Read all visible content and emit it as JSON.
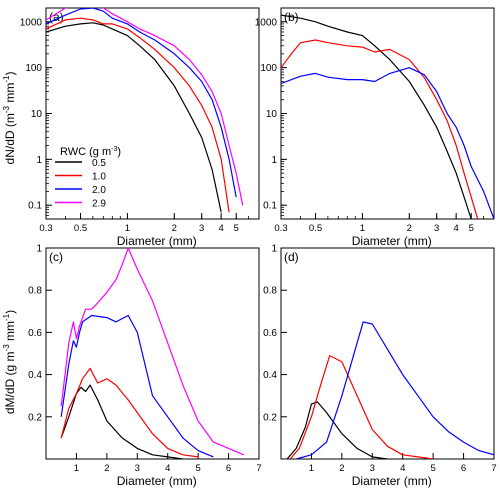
{
  "figure": {
    "legend_title_main": "RWC (g m",
    "legend_title_sup": "-3",
    "legend_title_end": ")",
    "ylabel_top_main": "dN/dD  (m",
    "ylabel_top_sup1": "-3",
    "ylabel_top_mid": " mm",
    "ylabel_top_sup2": "-1",
    "ylabel_top_end": ")",
    "ylabel_bottom_main": "dM/dD  (g m",
    "ylabel_bottom_sup1": "-3",
    "ylabel_bottom_mid": " mm",
    "ylabel_bottom_sup2": "-1",
    "ylabel_bottom_end": ")"
  },
  "chart_data": [
    {
      "panel_label": "(a)",
      "type": "line",
      "xscale": "log",
      "yscale": "log",
      "xlim": [
        0.3,
        7
      ],
      "ylim": [
        0.05,
        2000
      ],
      "xticks": [
        "0.3",
        "0.5",
        "1",
        "2",
        "3",
        "4",
        "5"
      ],
      "xtick_values": [
        0.3,
        0.5,
        1,
        2,
        3,
        4,
        5
      ],
      "yticks": [
        "0.1",
        "1",
        "10",
        "100",
        "1000"
      ],
      "ytick_values": [
        0.1,
        1,
        10,
        100,
        1000
      ],
      "xlabel": "Diameter (mm)",
      "legend": {
        "placement": "lower-left",
        "entries": [
          "0.5",
          "1.0",
          "2.0",
          "2.9"
        ]
      },
      "series": [
        {
          "name": "0.5",
          "color": "#000000",
          "x": [
            0.3,
            0.4,
            0.5,
            0.6,
            0.7,
            0.8,
            1.0,
            1.2,
            1.5,
            2.0,
            2.5,
            3.0,
            3.5,
            4.0
          ],
          "y": [
            600,
            800,
            900,
            950,
            850,
            700,
            500,
            300,
            150,
            40,
            10,
            3,
            0.6,
            0.07
          ]
        },
        {
          "name": "1.0",
          "color": "#ff0000",
          "x": [
            0.3,
            0.4,
            0.5,
            0.6,
            0.7,
            0.8,
            1.0,
            1.2,
            1.5,
            2.0,
            2.5,
            3.0,
            3.5,
            4.0,
            4.5
          ],
          "y": [
            700,
            1100,
            1200,
            1100,
            900,
            900,
            700,
            450,
            250,
            100,
            40,
            15,
            5,
            1,
            0.07
          ]
        },
        {
          "name": "2.0",
          "color": "#0000ff",
          "x": [
            0.3,
            0.4,
            0.5,
            0.6,
            0.7,
            0.8,
            1.0,
            1.2,
            1.5,
            2.0,
            2.5,
            3.0,
            3.5,
            4.0,
            4.5,
            5.0
          ],
          "y": [
            900,
            1400,
            1900,
            2000,
            1700,
            1200,
            900,
            600,
            400,
            200,
            100,
            50,
            20,
            5,
            1,
            0.15
          ]
        },
        {
          "name": "2.9",
          "color": "#ff00ff",
          "x": [
            0.3,
            0.4,
            0.5,
            0.6,
            0.7,
            0.8,
            1.0,
            1.2,
            1.5,
            2.0,
            2.5,
            3.0,
            3.5,
            4.0,
            4.5,
            5.0,
            5.5
          ],
          "y": [
            1100,
            2000,
            2500,
            2500,
            2000,
            1500,
            1000,
            700,
            500,
            300,
            150,
            70,
            30,
            10,
            2,
            0.5,
            0.1
          ]
        }
      ]
    },
    {
      "panel_label": "(b)",
      "type": "line",
      "xscale": "log",
      "yscale": "log",
      "xlim": [
        0.3,
        7
      ],
      "ylim": [
        0.05,
        2000
      ],
      "xticks": [
        "0.3",
        "0.5",
        "1",
        "2",
        "3",
        "4",
        "5"
      ],
      "xtick_values": [
        0.3,
        0.5,
        1,
        2,
        3,
        4,
        5
      ],
      "yticks": [
        "0.1",
        "1",
        "10",
        "100",
        "1000"
      ],
      "ytick_values": [
        0.1,
        1,
        10,
        100,
        1000
      ],
      "xlabel": "Diameter (mm)",
      "series": [
        {
          "color": "#000000",
          "x": [
            0.3,
            0.4,
            0.5,
            0.6,
            0.8,
            1.0,
            1.2,
            1.5,
            2.0,
            2.5,
            3.0,
            3.5,
            4.0,
            4.5,
            5.0
          ],
          "y": [
            1400,
            1200,
            1000,
            800,
            600,
            500,
            300,
            150,
            50,
            15,
            5,
            1.5,
            0.5,
            0.15,
            0.05
          ]
        },
        {
          "color": "#ff0000",
          "x": [
            0.3,
            0.35,
            0.4,
            0.5,
            0.6,
            0.8,
            1.0,
            1.2,
            1.5,
            2.0,
            2.5,
            3.0,
            3.5,
            4.0,
            4.5,
            5.0,
            5.5
          ],
          "y": [
            100,
            200,
            350,
            400,
            350,
            300,
            280,
            220,
            250,
            150,
            60,
            20,
            7,
            2,
            0.5,
            0.15,
            0.05
          ]
        },
        {
          "color": "#0000ff",
          "x": [
            0.3,
            0.4,
            0.5,
            0.6,
            0.8,
            1.0,
            1.2,
            1.5,
            2.0,
            2.5,
            3.0,
            3.5,
            4.0,
            4.5,
            5.0,
            6.0,
            7.0
          ],
          "y": [
            45,
            65,
            75,
            62,
            55,
            55,
            50,
            75,
            100,
            70,
            30,
            10,
            5,
            2,
            0.7,
            0.2,
            0.05
          ]
        }
      ]
    },
    {
      "panel_label": "(c)",
      "type": "line",
      "xscale": "linear",
      "yscale": "linear",
      "xlim": [
        0,
        7
      ],
      "ylim": [
        0,
        1
      ],
      "xticks": [
        "1",
        "2",
        "3",
        "4",
        "5",
        "6",
        "7"
      ],
      "xtick_values": [
        1,
        2,
        3,
        4,
        5,
        6,
        7
      ],
      "yticks": [
        "0.2",
        "0.4",
        "0.6",
        "0.8",
        "1"
      ],
      "ytick_values": [
        0.2,
        0.4,
        0.6,
        0.8,
        1
      ],
      "xlabel": "Diameter (mm)",
      "series": [
        {
          "name": "0.5",
          "color": "#000000",
          "x": [
            0.5,
            0.75,
            1.0,
            1.15,
            1.3,
            1.45,
            1.7,
            2.0,
            2.5,
            3.0,
            3.5,
            4.0,
            4.5
          ],
          "y": [
            0.1,
            0.2,
            0.31,
            0.34,
            0.32,
            0.35,
            0.28,
            0.18,
            0.1,
            0.05,
            0.02,
            0.01,
            0.0
          ]
        },
        {
          "name": "1.0",
          "color": "#ff0000",
          "x": [
            0.5,
            0.75,
            1.0,
            1.2,
            1.45,
            1.7,
            2.0,
            2.3,
            2.7,
            3.0,
            3.5,
            4.0,
            4.5,
            5.0
          ],
          "y": [
            0.1,
            0.24,
            0.31,
            0.38,
            0.43,
            0.36,
            0.38,
            0.35,
            0.28,
            0.22,
            0.12,
            0.05,
            0.02,
            0.01
          ]
        },
        {
          "name": "2.0",
          "color": "#0000ff",
          "x": [
            0.5,
            0.75,
            0.9,
            1.0,
            1.1,
            1.2,
            1.5,
            2.0,
            2.3,
            2.7,
            3.0,
            3.5,
            4.0,
            4.5,
            5.0,
            5.5
          ],
          "y": [
            0.2,
            0.45,
            0.56,
            0.53,
            0.6,
            0.65,
            0.68,
            0.67,
            0.65,
            0.68,
            0.6,
            0.3,
            0.2,
            0.1,
            0.04,
            0.01
          ]
        },
        {
          "name": "2.9",
          "color": "#ff00ff",
          "x": [
            0.5,
            0.75,
            0.9,
            1.0,
            1.1,
            1.3,
            1.5,
            1.7,
            2.0,
            2.3,
            2.5,
            2.7,
            3.0,
            3.5,
            4.0,
            4.5,
            5.0,
            5.5,
            6.0,
            6.5
          ],
          "y": [
            0.25,
            0.55,
            0.65,
            0.57,
            0.63,
            0.71,
            0.71,
            0.74,
            0.79,
            0.85,
            0.92,
            1.0,
            0.9,
            0.75,
            0.55,
            0.35,
            0.18,
            0.08,
            0.05,
            0.02
          ]
        }
      ]
    },
    {
      "panel_label": "(d)",
      "type": "line",
      "xscale": "linear",
      "yscale": "linear",
      "xlim": [
        0,
        7
      ],
      "ylim": [
        0,
        1
      ],
      "xticks": [
        "1",
        "2",
        "3",
        "4",
        "5",
        "6",
        "7"
      ],
      "xtick_values": [
        1,
        2,
        3,
        4,
        5,
        6,
        7
      ],
      "yticks": [
        "0.2",
        "0.4",
        "0.6",
        "0.8",
        "1"
      ],
      "ytick_values": [
        0.2,
        0.4,
        0.6,
        0.8,
        1
      ],
      "xlabel": "Diameter (mm)",
      "series": [
        {
          "color": "#000000",
          "x": [
            0.2,
            0.5,
            0.8,
            1.0,
            1.2,
            1.5,
            2.0,
            2.5,
            3.0,
            3.5
          ],
          "y": [
            0.0,
            0.05,
            0.15,
            0.26,
            0.27,
            0.22,
            0.12,
            0.05,
            0.01,
            0.0
          ]
        },
        {
          "color": "#ff0000",
          "x": [
            0.3,
            0.6,
            1.0,
            1.3,
            1.6,
            2.0,
            2.5,
            3.0,
            3.5,
            4.0,
            4.5,
            5.0
          ],
          "y": [
            0.0,
            0.05,
            0.2,
            0.35,
            0.49,
            0.46,
            0.3,
            0.14,
            0.06,
            0.02,
            0.01,
            0.0
          ]
        },
        {
          "color": "#0000ff",
          "x": [
            0.5,
            1.0,
            1.5,
            2.0,
            2.5,
            2.7,
            3.0,
            3.5,
            4.0,
            4.5,
            5.0,
            5.5,
            6.0,
            6.5,
            7.0
          ],
          "y": [
            0.0,
            0.02,
            0.08,
            0.3,
            0.55,
            0.65,
            0.64,
            0.52,
            0.4,
            0.3,
            0.2,
            0.13,
            0.08,
            0.04,
            0.02
          ]
        }
      ]
    }
  ]
}
